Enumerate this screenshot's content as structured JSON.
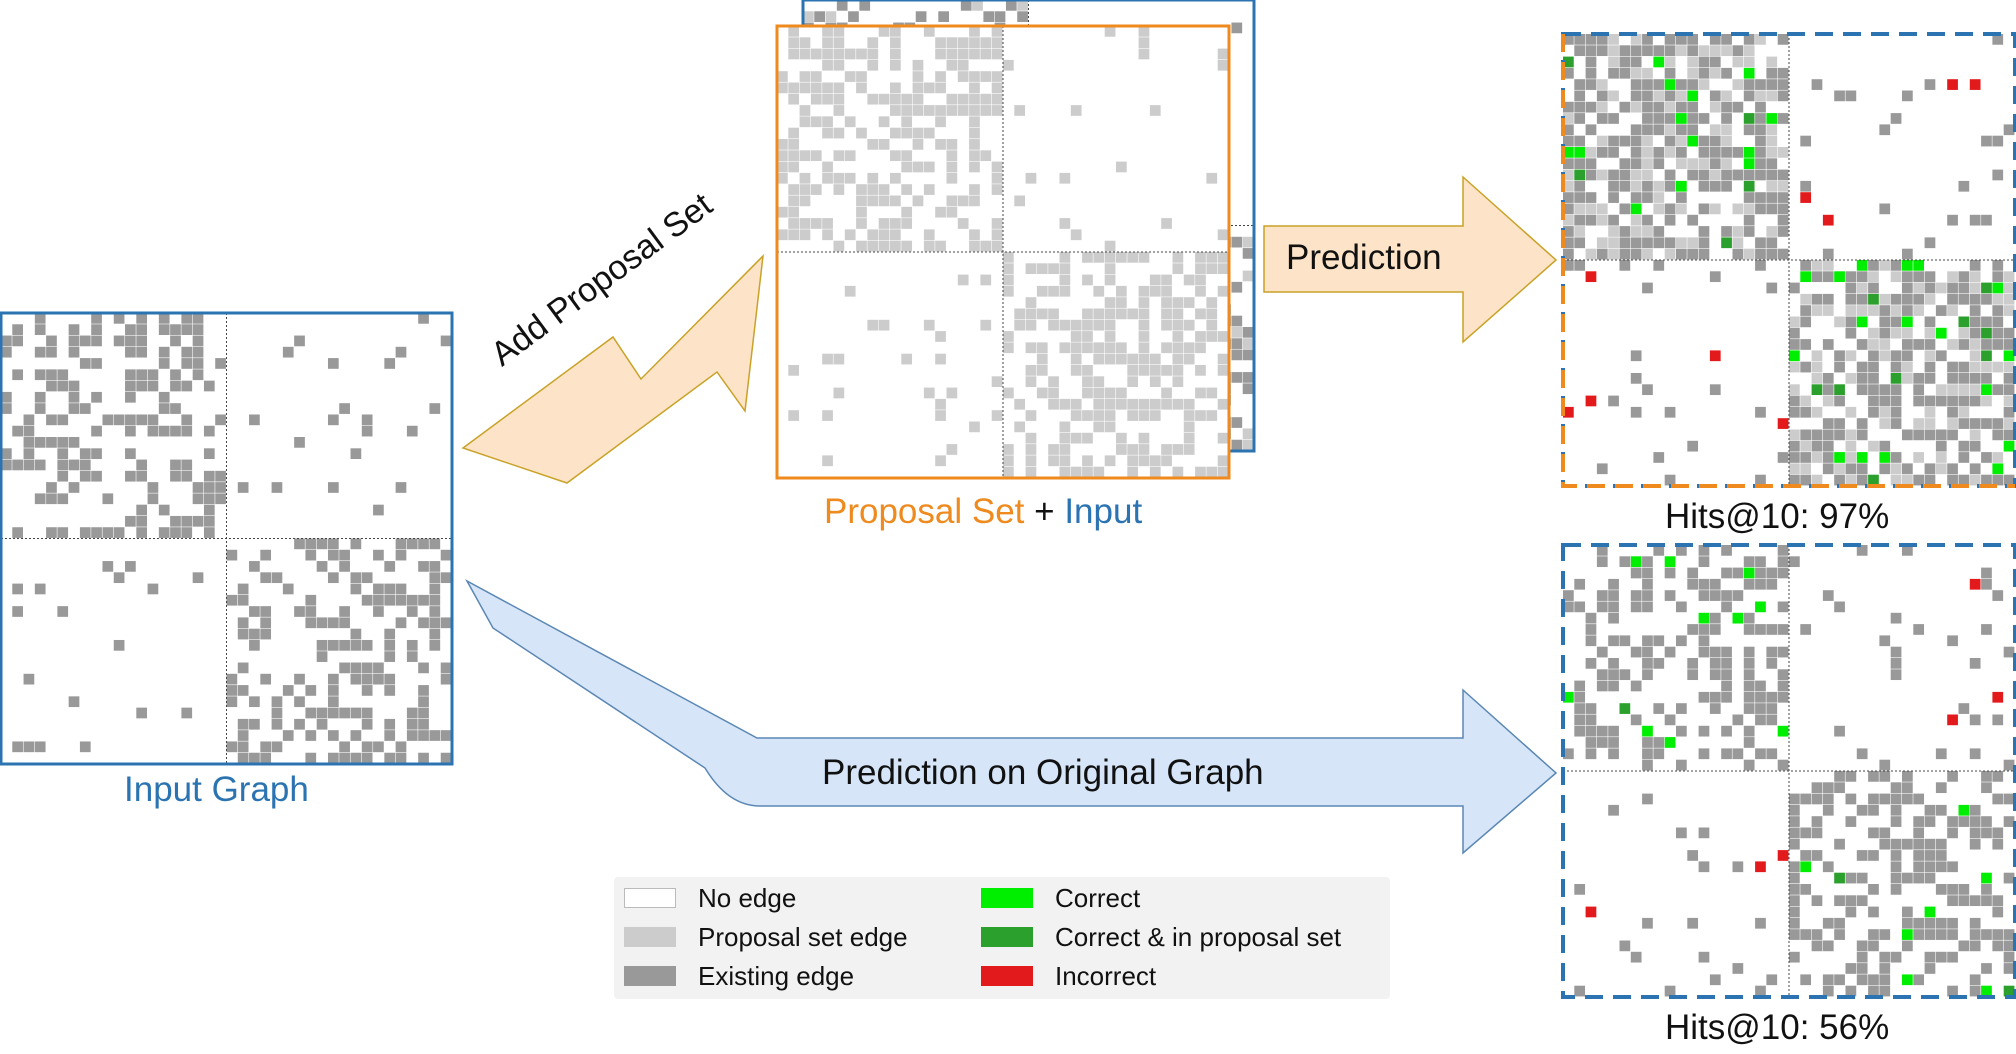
{
  "labels": {
    "input_graph": "Input Graph",
    "proposal_set": "Proposal Set",
    "plus": "+",
    "input": "Input",
    "hits_top": "Hits@10: 97%",
    "hits_bottom": "Hits@10: 56%"
  },
  "arrows": {
    "add_proposal": "Add Proposal Set",
    "prediction": "Prediction",
    "prediction_original": "Prediction on Original Graph"
  },
  "legend": {
    "items": [
      {
        "label": "No edge",
        "color": "#ffffff"
      },
      {
        "label": "Proposal set edge",
        "color": "#cccccc"
      },
      {
        "label": "Existing edge",
        "color": "#999999"
      },
      {
        "label": "Correct",
        "color": "#00ee00"
      },
      {
        "label": "Correct & in proposal set",
        "color": "#2ca02c"
      },
      {
        "label": "Incorrect",
        "color": "#e31a1c"
      }
    ]
  },
  "colors": {
    "input_blue": "#2b74b1",
    "proposal_orange": "#ee8a1e",
    "existing_edge": "#999999",
    "proposal_edge": "#cccccc",
    "correct": "#00ee00",
    "correct_in_proposal": "#2ca02c",
    "incorrect": "#e31a1c",
    "arrow_orange_fill": "#fde4c8",
    "arrow_blue_fill": "#d6e6f8"
  }
}
